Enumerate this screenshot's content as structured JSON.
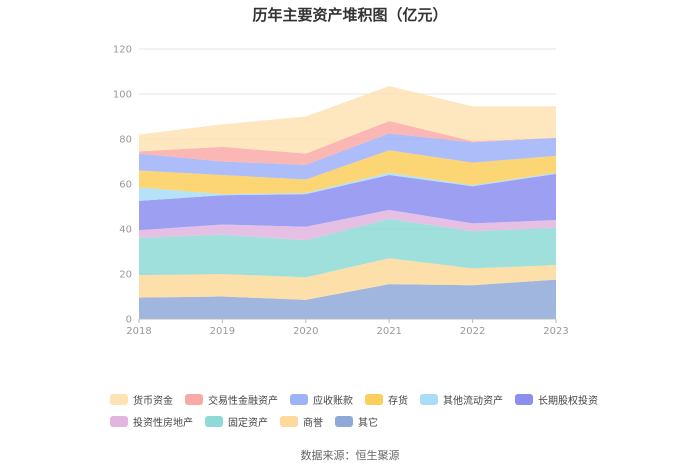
{
  "chart_data": {
    "type": "area",
    "stacked": true,
    "title": "历年主要资产堆积图（亿元）",
    "source": "数据来源：恒生聚源",
    "categories": [
      "2018",
      "2019",
      "2020",
      "2021",
      "2022",
      "2023"
    ],
    "ylim": [
      0,
      120
    ],
    "yticks": [
      0,
      20,
      40,
      60,
      80,
      100,
      120
    ],
    "grid": true,
    "legend_position": "bottom",
    "series": [
      {
        "name": "其它",
        "color": "#8fa9d9",
        "values": [
          9.5,
          10,
          8.5,
          15.5,
          15,
          17.5
        ]
      },
      {
        "name": "商誉",
        "color": "#fdd99b",
        "values": [
          10,
          10,
          10,
          11.5,
          7.5,
          6.5
        ]
      },
      {
        "name": "固定资产",
        "color": "#8fdad6",
        "values": [
          16.5,
          17.5,
          16.5,
          17.5,
          16.5,
          16.5
        ]
      },
      {
        "name": "投资性房地产",
        "color": "#e2b4e0",
        "values": [
          3.5,
          4.5,
          6,
          4,
          3.5,
          3.5
        ]
      },
      {
        "name": "长期股权投资",
        "color": "#8c8ff0",
        "values": [
          13,
          13,
          14.5,
          15.5,
          16.5,
          20.5
        ]
      },
      {
        "name": "其他流动资产",
        "color": "#a8dcf8",
        "values": [
          6,
          0.5,
          0.5,
          1,
          0.5,
          0.5
        ]
      },
      {
        "name": "存货",
        "color": "#fccf5c",
        "values": [
          7.5,
          8.5,
          6,
          10,
          10,
          7.5
        ]
      },
      {
        "name": "应收账款",
        "color": "#9db2f8",
        "values": [
          7.5,
          6,
          6.5,
          7.5,
          9,
          8
        ]
      },
      {
        "name": "交易性金融资产",
        "color": "#f9aaa7",
        "values": [
          1,
          6.5,
          5,
          5.5,
          0.5,
          0
        ]
      },
      {
        "name": "货币资金",
        "color": "#fee2b4",
        "values": [
          7.5,
          10,
          16.5,
          15.5,
          15.5,
          14
        ]
      }
    ],
    "legend_order": [
      "货币资金",
      "交易性金融资产",
      "应收账款",
      "存货",
      "其他流动资产",
      "长期股权投资",
      "投资性房地产",
      "固定资产",
      "商誉",
      "其它"
    ]
  }
}
